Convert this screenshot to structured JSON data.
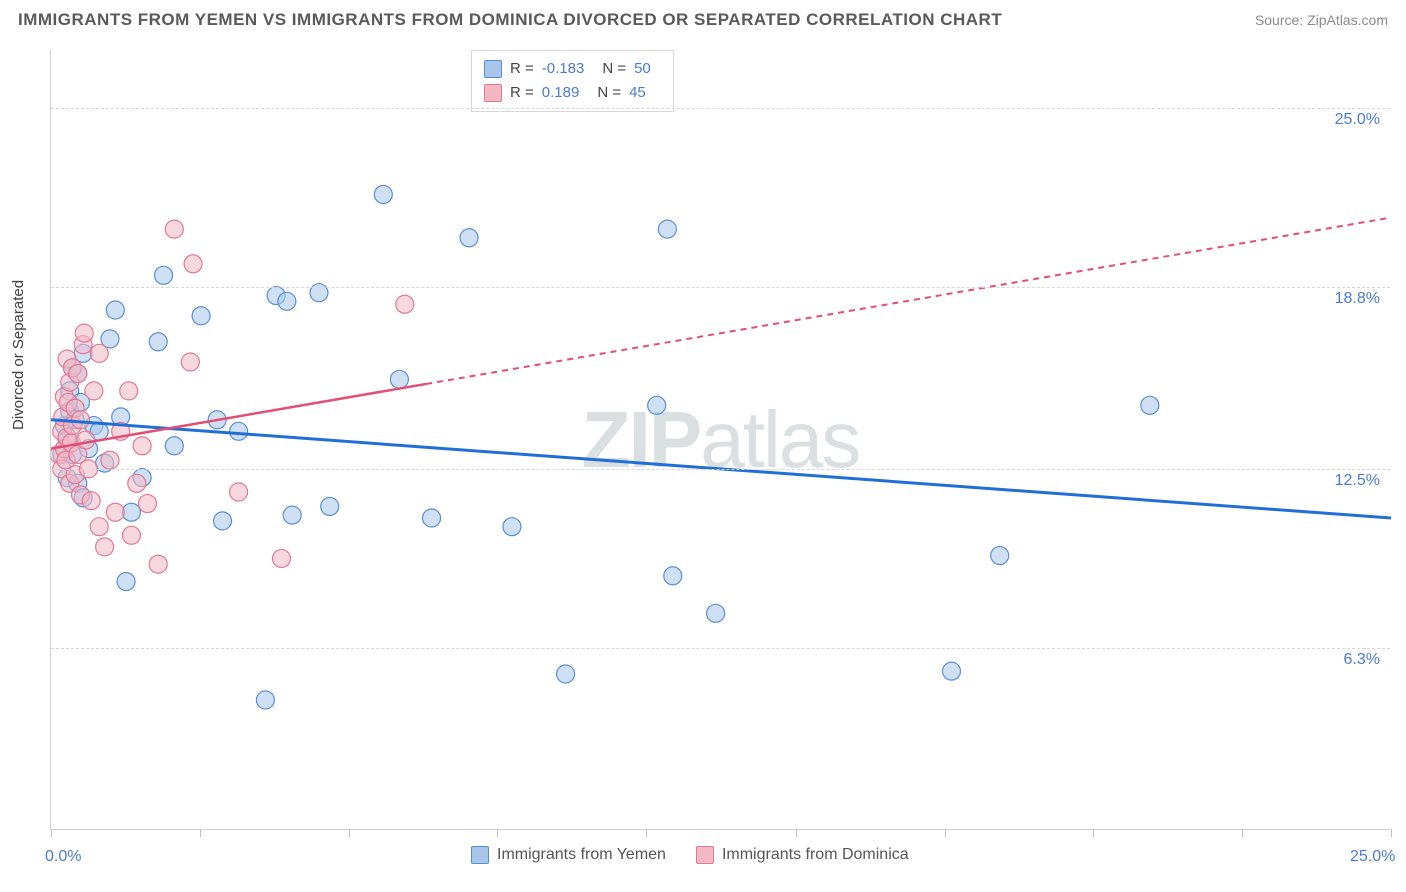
{
  "header": {
    "title": "IMMIGRANTS FROM YEMEN VS IMMIGRANTS FROM DOMINICA DIVORCED OR SEPARATED CORRELATION CHART",
    "source": "Source: ZipAtlas.com"
  },
  "chart": {
    "type": "scatter",
    "y_axis_label": "Divorced or Separated",
    "background_color": "#ffffff",
    "grid_color": "#d8d8d8",
    "border_color": "#d0d0d0",
    "xlim": [
      0,
      25
    ],
    "ylim": [
      0,
      27
    ],
    "x_ticks": [
      0,
      2.78,
      5.56,
      8.33,
      11.11,
      13.89,
      16.67,
      19.44,
      22.22,
      25
    ],
    "x_tick_labels": {
      "0": "0.0%",
      "25": "25.0%"
    },
    "y_gridlines": [
      6.3,
      12.5,
      18.8,
      25.0
    ],
    "y_tick_labels": [
      "6.3%",
      "12.5%",
      "18.8%",
      "25.0%"
    ],
    "tick_label_color": "#4a7bd0",
    "tick_label_fontsize": 16,
    "axis_label_fontsize": 15,
    "watermark": {
      "prefix": "ZIP",
      "suffix": "atlas",
      "color": "#bcc5cc"
    },
    "series": [
      {
        "name": "Immigrants from Yemen",
        "marker_fill": "#a8c6ec",
        "marker_stroke": "#5a8fd6",
        "marker_radius": 9,
        "fill_opacity": 0.55,
        "line_color": "#206fd6",
        "line_width": 3,
        "line_dash": "none",
        "R": "-0.183",
        "N": "50",
        "trend": {
          "x1": 0,
          "y1": 14.2,
          "x2": 25,
          "y2": 10.8
        },
        "points": [
          [
            0.2,
            13.0
          ],
          [
            0.25,
            14.0
          ],
          [
            0.3,
            13.5
          ],
          [
            0.3,
            12.2
          ],
          [
            0.35,
            14.5
          ],
          [
            0.35,
            15.2
          ],
          [
            0.4,
            16.0
          ],
          [
            0.4,
            13.0
          ],
          [
            0.45,
            14.2
          ],
          [
            0.5,
            12.0
          ],
          [
            0.5,
            15.8
          ],
          [
            0.55,
            14.8
          ],
          [
            0.6,
            11.5
          ],
          [
            0.6,
            16.5
          ],
          [
            0.7,
            13.2
          ],
          [
            0.8,
            14.0
          ],
          [
            1.0,
            12.7
          ],
          [
            1.1,
            17.0
          ],
          [
            1.2,
            18.0
          ],
          [
            1.3,
            14.3
          ],
          [
            1.4,
            8.6
          ],
          [
            1.5,
            11.0
          ],
          [
            2.0,
            16.9
          ],
          [
            2.1,
            19.2
          ],
          [
            2.3,
            13.3
          ],
          [
            2.8,
            17.8
          ],
          [
            3.1,
            14.2
          ],
          [
            3.2,
            10.7
          ],
          [
            4.0,
            4.5
          ],
          [
            4.2,
            18.5
          ],
          [
            4.4,
            18.3
          ],
          [
            4.5,
            10.9
          ],
          [
            5.0,
            18.6
          ],
          [
            5.2,
            11.2
          ],
          [
            6.2,
            22.0
          ],
          [
            6.5,
            15.6
          ],
          [
            7.1,
            10.8
          ],
          [
            7.8,
            20.5
          ],
          [
            8.6,
            10.5
          ],
          [
            9.6,
            5.4
          ],
          [
            11.3,
            14.7
          ],
          [
            11.5,
            20.8
          ],
          [
            11.6,
            8.8
          ],
          [
            12.4,
            7.5
          ],
          [
            16.8,
            5.5
          ],
          [
            17.7,
            9.5
          ],
          [
            20.5,
            14.7
          ],
          [
            0.9,
            13.8
          ],
          [
            1.7,
            12.2
          ],
          [
            3.5,
            13.8
          ]
        ]
      },
      {
        "name": "Immigrants from Dominica",
        "marker_fill": "#f3b8c4",
        "marker_stroke": "#e07a94",
        "marker_radius": 9,
        "fill_opacity": 0.55,
        "line_color": "#e44d74",
        "line_width": 2.5,
        "line_dash": "6,5",
        "trend_solid_until": 7.0,
        "R": "0.189",
        "N": "45",
        "trend": {
          "x1": 0,
          "y1": 13.2,
          "x2": 25,
          "y2": 21.2
        },
        "points": [
          [
            0.15,
            13.0
          ],
          [
            0.2,
            13.8
          ],
          [
            0.2,
            12.5
          ],
          [
            0.22,
            14.3
          ],
          [
            0.25,
            13.2
          ],
          [
            0.25,
            15.0
          ],
          [
            0.28,
            12.8
          ],
          [
            0.3,
            16.3
          ],
          [
            0.3,
            13.6
          ],
          [
            0.32,
            14.8
          ],
          [
            0.35,
            12.0
          ],
          [
            0.35,
            15.5
          ],
          [
            0.38,
            13.4
          ],
          [
            0.4,
            14.0
          ],
          [
            0.4,
            16.0
          ],
          [
            0.45,
            12.3
          ],
          [
            0.45,
            14.6
          ],
          [
            0.5,
            15.8
          ],
          [
            0.5,
            13.0
          ],
          [
            0.55,
            11.6
          ],
          [
            0.55,
            14.2
          ],
          [
            0.6,
            16.8
          ],
          [
            0.65,
            13.5
          ],
          [
            0.7,
            12.5
          ],
          [
            0.75,
            11.4
          ],
          [
            0.8,
            15.2
          ],
          [
            0.9,
            10.5
          ],
          [
            0.9,
            16.5
          ],
          [
            1.0,
            9.8
          ],
          [
            1.1,
            12.8
          ],
          [
            1.2,
            11.0
          ],
          [
            1.3,
            13.8
          ],
          [
            1.45,
            15.2
          ],
          [
            1.5,
            10.2
          ],
          [
            1.6,
            12.0
          ],
          [
            1.7,
            13.3
          ],
          [
            1.8,
            11.3
          ],
          [
            2.0,
            9.2
          ],
          [
            2.3,
            20.8
          ],
          [
            2.6,
            16.2
          ],
          [
            2.65,
            19.6
          ],
          [
            3.5,
            11.7
          ],
          [
            4.3,
            9.4
          ],
          [
            6.6,
            18.2
          ],
          [
            0.62,
            17.2
          ]
        ]
      }
    ],
    "legend_bottom": [
      {
        "label": "Immigrants from Yemen",
        "fill": "#a8c6ec",
        "stroke": "#5a8fd6"
      },
      {
        "label": "Immigrants from Dominica",
        "fill": "#f3b8c4",
        "stroke": "#e07a94"
      }
    ]
  }
}
